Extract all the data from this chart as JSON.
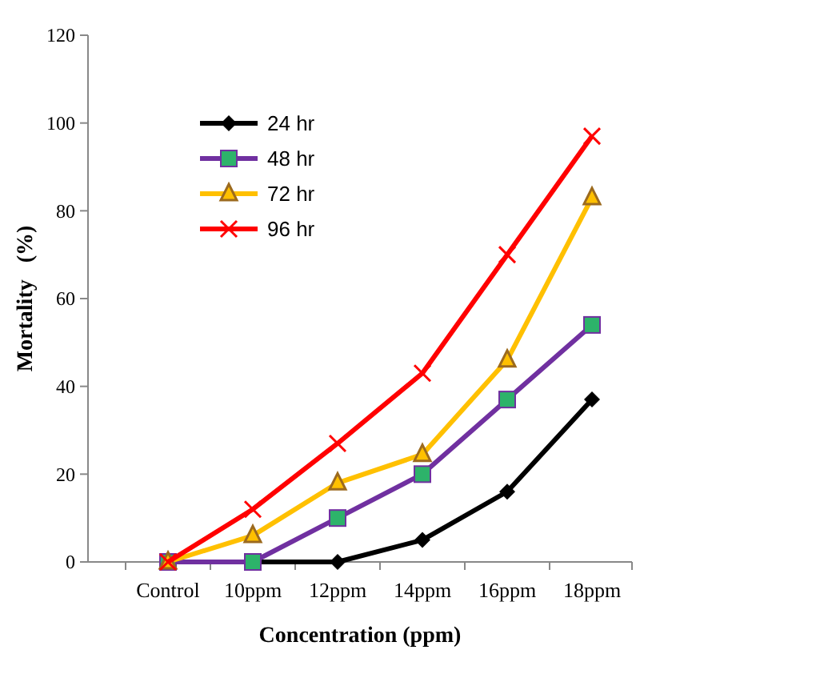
{
  "chart_data": {
    "type": "line",
    "xlabel": "Concentration  (ppm)",
    "ylabel": "Mortality   (%)",
    "categories": [
      "Control",
      "10ppm",
      "12ppm",
      "14ppm",
      "16ppm",
      "18ppm"
    ],
    "ylim": [
      0,
      120
    ],
    "yticks": [
      0,
      20,
      40,
      60,
      80,
      100,
      120
    ],
    "grid": false,
    "legend": "top left",
    "line_style": "solid",
    "series": [
      {
        "name": "24 hr",
        "color": "#000000",
        "marker": "diamond",
        "values": [
          0,
          0,
          0,
          5,
          16,
          37
        ]
      },
      {
        "name": "48 hr",
        "color": "#7030a0",
        "marker": "square",
        "values": [
          0,
          0,
          10,
          20,
          37,
          54
        ]
      },
      {
        "name": "72 hr",
        "color": "#ffc000",
        "marker": "triangle",
        "values": [
          0,
          6,
          18,
          24.5,
          46,
          83
        ]
      },
      {
        "name": "96 hr",
        "color": "#ff0000",
        "marker": "cross",
        "values": [
          0,
          12,
          27,
          43,
          70,
          97
        ]
      }
    ]
  }
}
